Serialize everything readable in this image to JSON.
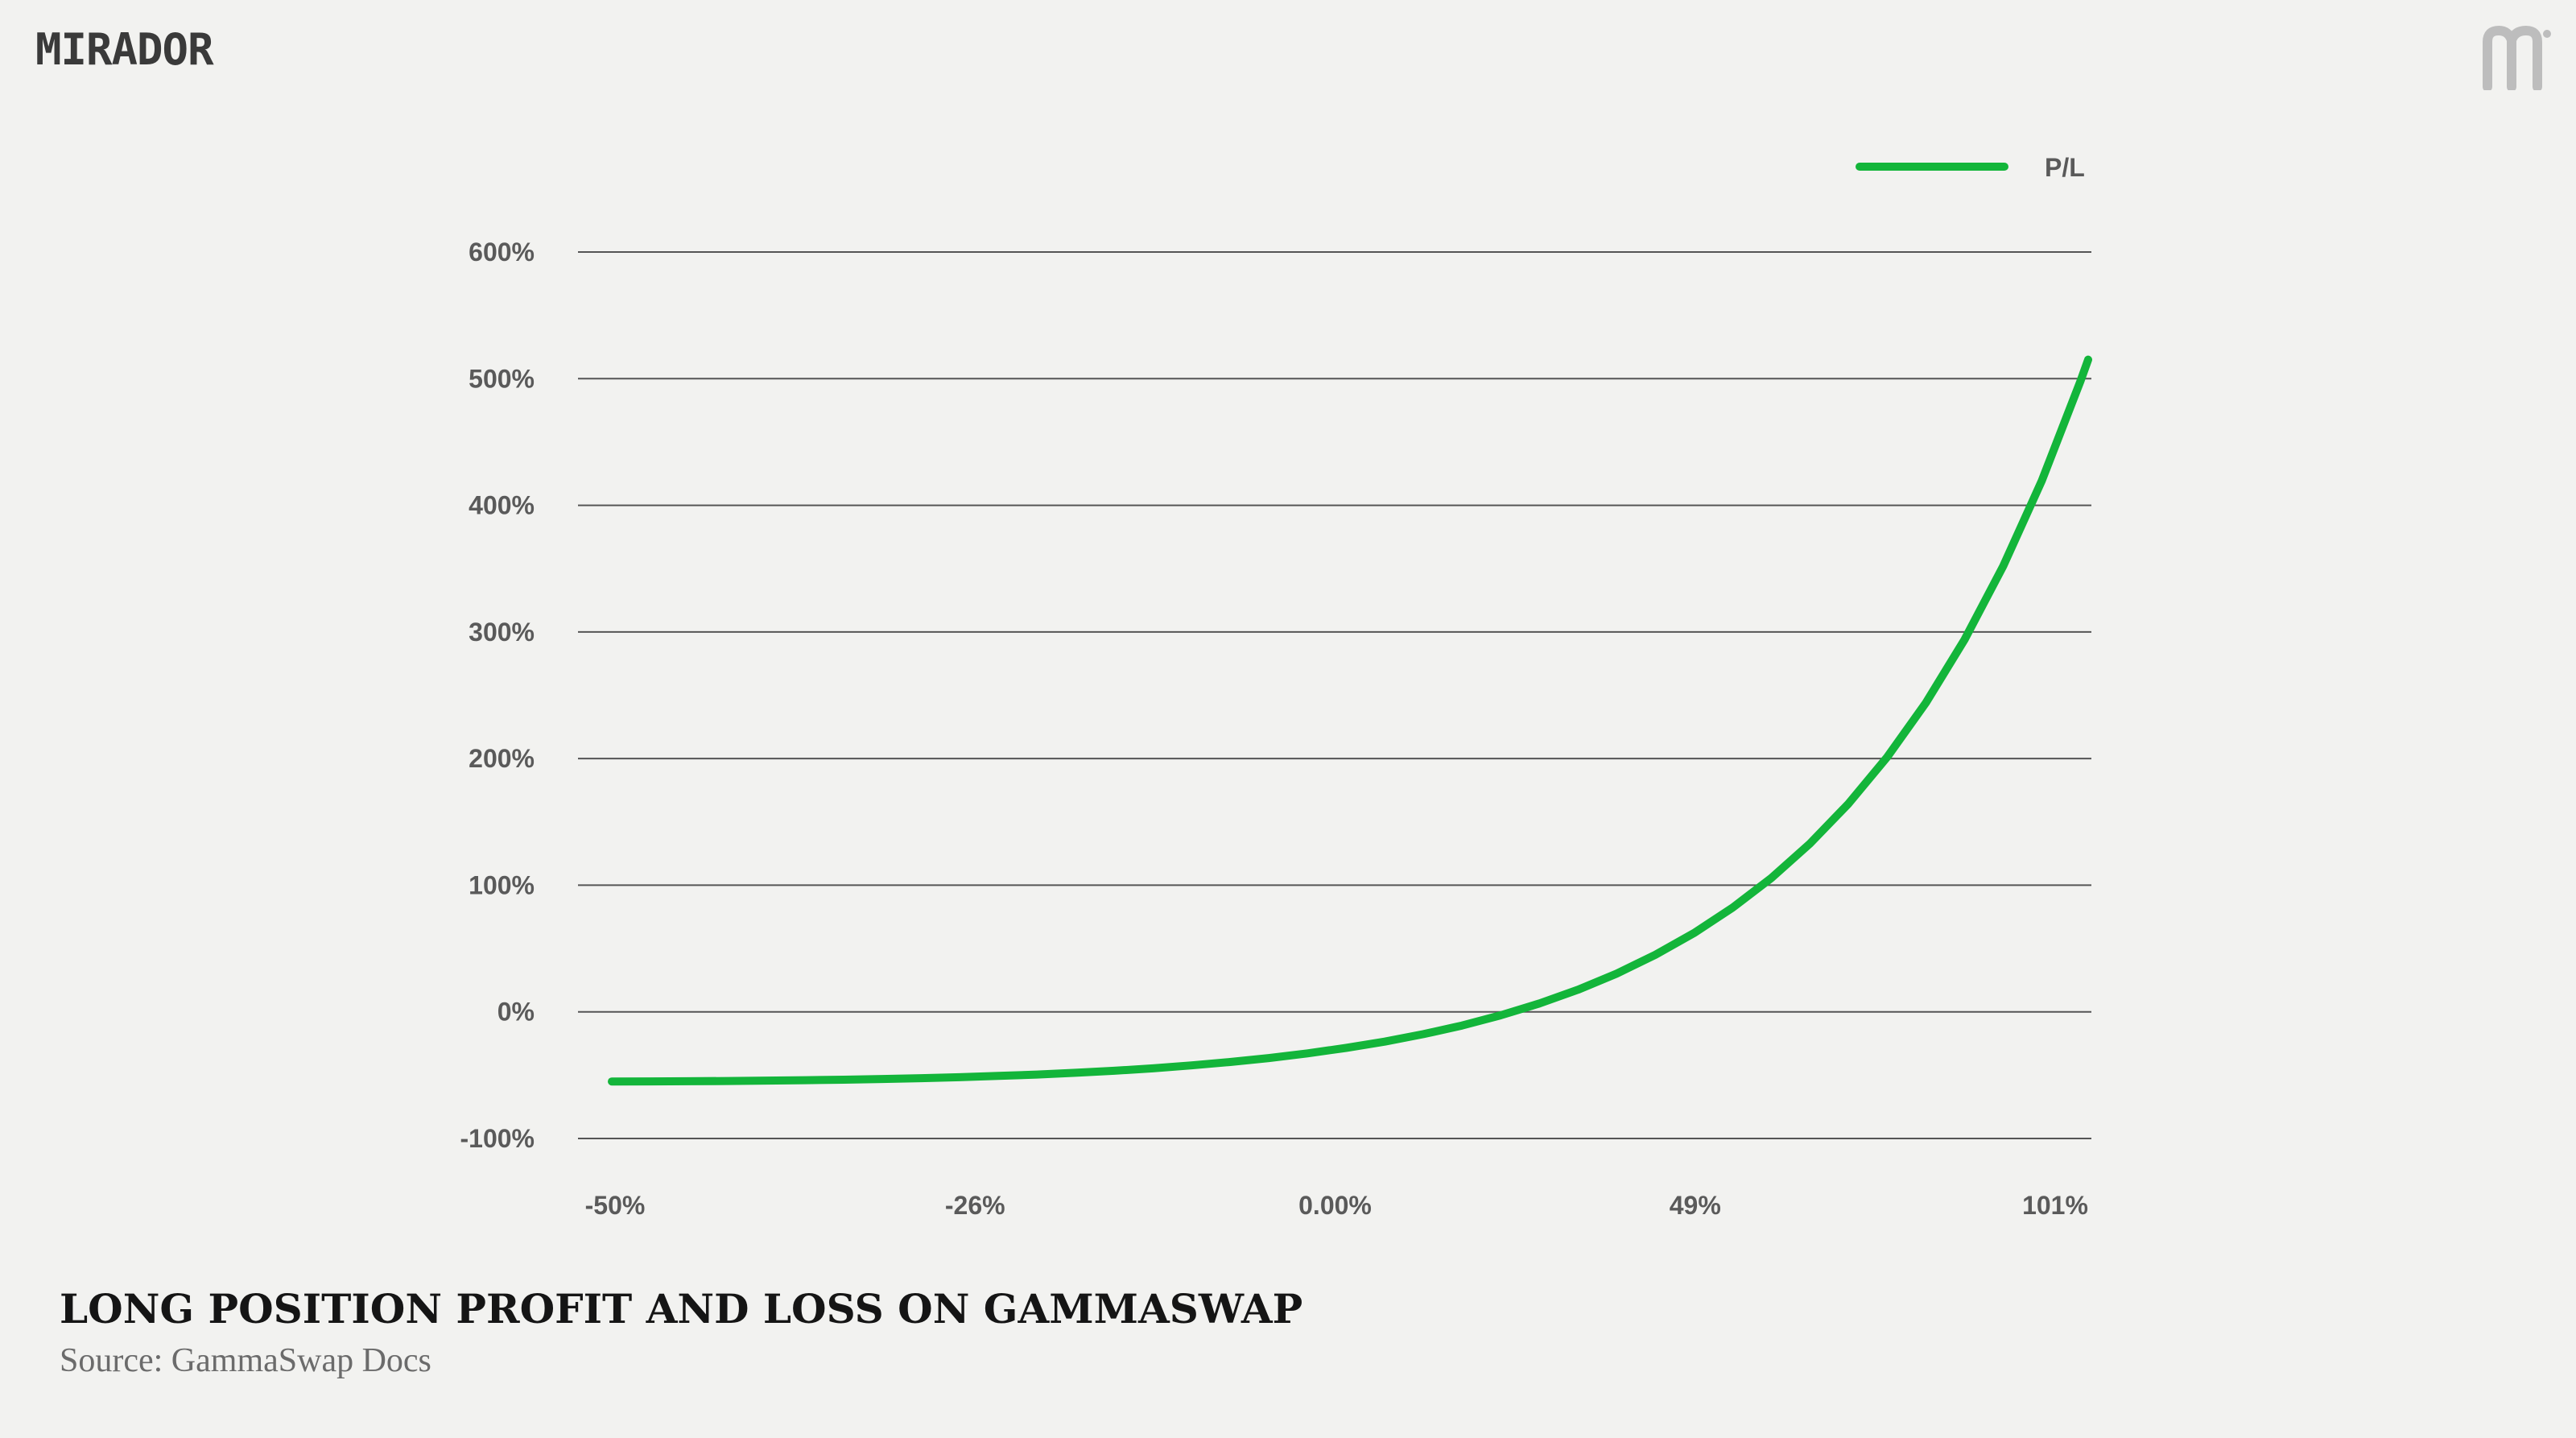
{
  "brand": {
    "name": "MIRADOR",
    "mark_color": "#bdbdbd"
  },
  "caption": {
    "title": "LONG POSITION PROFIT AND LOSS ON GAMMASWAP",
    "source": "Source: GammaSwap Docs"
  },
  "colors": {
    "background": "#f2f2f0",
    "line": "#13b53a",
    "grid": "#555555",
    "text": "#5a5a5a"
  },
  "chart_data": {
    "type": "line",
    "title": "",
    "xlabel": "",
    "ylabel": "",
    "legend": {
      "position": "top-right"
    },
    "grid": true,
    "x_ticks": [
      {
        "label": "-50%",
        "value": -50
      },
      {
        "label": "-26%",
        "value": -26
      },
      {
        "label": "0.00%",
        "value": 0
      },
      {
        "label": "49%",
        "value": 49
      },
      {
        "label": "101%",
        "value": 101
      }
    ],
    "y_ticks": [
      {
        "label": "-100%",
        "value": -100
      },
      {
        "label": "0%",
        "value": 0
      },
      {
        "label": "100%",
        "value": 100
      },
      {
        "label": "200%",
        "value": 200
      },
      {
        "label": "300%",
        "value": 300
      },
      {
        "label": "400%",
        "value": 400
      },
      {
        "label": "500%",
        "value": 500
      },
      {
        "label": "600%",
        "value": 600
      }
    ],
    "ylim": [
      -100,
      600
    ],
    "series": [
      {
        "name": "P/L",
        "color": "#13b53a",
        "points": [
          {
            "x": 0,
            "y": -55
          },
          {
            "x": 1,
            "y": -54.9
          },
          {
            "x": 2,
            "y": -54.8
          },
          {
            "x": 3,
            "y": -54.6
          },
          {
            "x": 4,
            "y": -54.3
          },
          {
            "x": 5,
            "y": -54.0
          },
          {
            "x": 6,
            "y": -53.6
          },
          {
            "x": 7,
            "y": -53.0
          },
          {
            "x": 8,
            "y": -52.4
          },
          {
            "x": 9,
            "y": -51.6
          },
          {
            "x": 10,
            "y": -50.6
          },
          {
            "x": 11,
            "y": -49.5
          },
          {
            "x": 12,
            "y": -48.1
          },
          {
            "x": 13,
            "y": -46.5
          },
          {
            "x": 14,
            "y": -44.6
          },
          {
            "x": 15,
            "y": -42.3
          },
          {
            "x": 16,
            "y": -39.6
          },
          {
            "x": 17,
            "y": -36.5
          },
          {
            "x": 18,
            "y": -32.8
          },
          {
            "x": 19,
            "y": -28.5
          },
          {
            "x": 20,
            "y": -23.5
          },
          {
            "x": 21,
            "y": -17.6
          },
          {
            "x": 22,
            "y": -10.8
          },
          {
            "x": 23,
            "y": -2.7
          },
          {
            "x": 24,
            "y": 6.6
          },
          {
            "x": 25,
            "y": 17.5
          },
          {
            "x": 26,
            "y": 30.2
          },
          {
            "x": 27,
            "y": 45.0
          },
          {
            "x": 28,
            "y": 62.2
          },
          {
            "x": 29,
            "y": 82.3
          },
          {
            "x": 30,
            "y": 105.6
          },
          {
            "x": 31,
            "y": 132.8
          },
          {
            "x": 32,
            "y": 164.4
          },
          {
            "x": 33,
            "y": 201.2
          },
          {
            "x": 34,
            "y": 244.0
          },
          {
            "x": 35,
            "y": 293.9
          },
          {
            "x": 36,
            "y": 351.9
          },
          {
            "x": 37,
            "y": 419.4
          },
          {
            "x": 38,
            "y": 498.0
          },
          {
            "x": 38.2,
            "y": 515.0
          }
        ]
      }
    ]
  }
}
